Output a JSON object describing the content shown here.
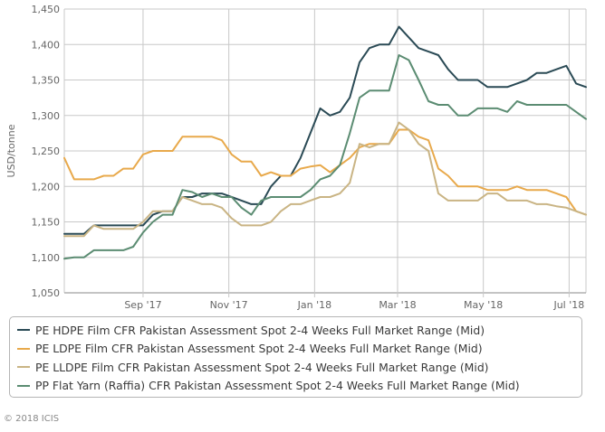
{
  "chart_data": {
    "type": "line",
    "title": "",
    "xlabel": "",
    "ylabel": "USD/tonne",
    "ylim": [
      1050,
      1450
    ],
    "yticks": [
      1050,
      1100,
      1150,
      1200,
      1250,
      1300,
      1350,
      1400,
      1450
    ],
    "ytick_labels": [
      "1,050",
      "1,100",
      "1,150",
      "1,200",
      "1,250",
      "1,300",
      "1,350",
      "1,400",
      "1,450"
    ],
    "x_start": "2017-07-07",
    "x_interval_days": 7,
    "x_end": "2018-07-13",
    "xticks": [
      {
        "label": "Sep '17",
        "date": "2017-09-01"
      },
      {
        "label": "Nov '17",
        "date": "2017-11-01"
      },
      {
        "label": "Jan '18",
        "date": "2018-01-01"
      },
      {
        "label": "Mar '18",
        "date": "2018-03-01"
      },
      {
        "label": "May '18",
        "date": "2018-05-01"
      },
      {
        "label": "Jul '18",
        "date": "2018-07-01"
      }
    ],
    "grid": true,
    "legend_position": "bottom",
    "series": [
      {
        "name": "PE HDPE Film CFR Pakistan Assessment Spot 2-4 Weeks Full Market Range (Mid)",
        "color": "#2a4a55",
        "values": [
          1133,
          1133,
          1133,
          1145,
          1145,
          1145,
          1145,
          1145,
          1145,
          1160,
          1165,
          1165,
          1185,
          1185,
          1190,
          1190,
          1190,
          1185,
          1180,
          1175,
          1175,
          1200,
          1215,
          1215,
          1240,
          1275,
          1310,
          1300,
          1305,
          1325,
          1375,
          1395,
          1400,
          1400,
          1425,
          1410,
          1395,
          1390,
          1385,
          1365,
          1350,
          1350,
          1350,
          1340,
          1340,
          1340,
          1345,
          1350,
          1360,
          1360,
          1365,
          1370,
          1345,
          1340
        ]
      },
      {
        "name": "PE LDPE Film CFR Pakistan Assessment Spot 2-4 Weeks Full Market Range (Mid)",
        "color": "#e8a94b",
        "values": [
          1240,
          1210,
          1210,
          1210,
          1215,
          1215,
          1225,
          1225,
          1245,
          1250,
          1250,
          1250,
          1270,
          1270,
          1270,
          1270,
          1265,
          1245,
          1235,
          1235,
          1215,
          1220,
          1215,
          1215,
          1225,
          1228,
          1230,
          1220,
          1230,
          1240,
          1255,
          1260,
          1260,
          1260,
          1280,
          1280,
          1270,
          1265,
          1225,
          1215,
          1200,
          1200,
          1200,
          1195,
          1195,
          1195,
          1200,
          1195,
          1195,
          1195,
          1190,
          1185,
          1165,
          1160
        ]
      },
      {
        "name": "PE LLDPE Film CFR Pakistan Assessment Spot 2-4 Weeks Full Market Range (Mid)",
        "color": "#c9b484",
        "values": [
          1130,
          1130,
          1130,
          1145,
          1140,
          1140,
          1140,
          1140,
          1150,
          1165,
          1165,
          1165,
          1185,
          1180,
          1175,
          1175,
          1170,
          1155,
          1145,
          1145,
          1145,
          1150,
          1165,
          1175,
          1175,
          1180,
          1185,
          1185,
          1190,
          1205,
          1260,
          1255,
          1260,
          1260,
          1290,
          1280,
          1260,
          1250,
          1190,
          1180,
          1180,
          1180,
          1180,
          1190,
          1190,
          1180,
          1180,
          1180,
          1175,
          1175,
          1172,
          1170,
          1165,
          1160
        ]
      },
      {
        "name": "PP Flat Yarn (Raffia) CFR Pakistan Assessment Spot 2-4 Weeks Full Market Range (Mid)",
        "color": "#5b8c72",
        "values": [
          1098,
          1100,
          1100,
          1110,
          1110,
          1110,
          1110,
          1115,
          1135,
          1150,
          1160,
          1160,
          1195,
          1192,
          1185,
          1190,
          1185,
          1185,
          1170,
          1160,
          1180,
          1185,
          1185,
          1185,
          1185,
          1195,
          1210,
          1215,
          1230,
          1275,
          1325,
          1335,
          1335,
          1335,
          1385,
          1378,
          1350,
          1320,
          1315,
          1315,
          1300,
          1300,
          1310,
          1310,
          1310,
          1305,
          1320,
          1315,
          1315,
          1315,
          1315,
          1315,
          1305,
          1295
        ]
      }
    ]
  },
  "legend": {
    "items": [
      {
        "label": "PE HDPE Film CFR Pakistan Assessment Spot 2-4 Weeks Full Market Range (Mid)",
        "color": "#2a4a55"
      },
      {
        "label": "PE LDPE Film CFR Pakistan Assessment Spot 2-4 Weeks Full Market Range (Mid)",
        "color": "#e8a94b"
      },
      {
        "label": "PE LLDPE Film CFR Pakistan Assessment Spot 2-4 Weeks Full Market Range (Mid)",
        "color": "#c9b484"
      },
      {
        "label": "PP Flat Yarn (Raffia) CFR Pakistan Assessment Spot 2-4 Weeks Full Market Range (Mid)",
        "color": "#5b8c72"
      }
    ]
  },
  "footer": {
    "copyright": "© 2018 ICIS"
  }
}
